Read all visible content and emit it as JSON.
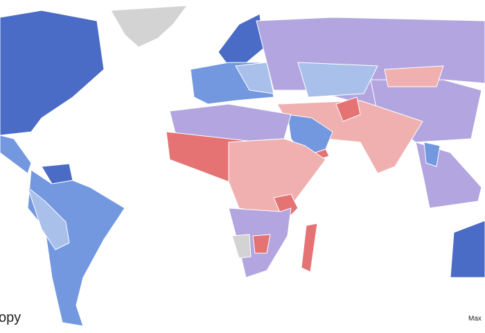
{
  "footer": {
    "left": "opy",
    "right": "Max"
  }
}
